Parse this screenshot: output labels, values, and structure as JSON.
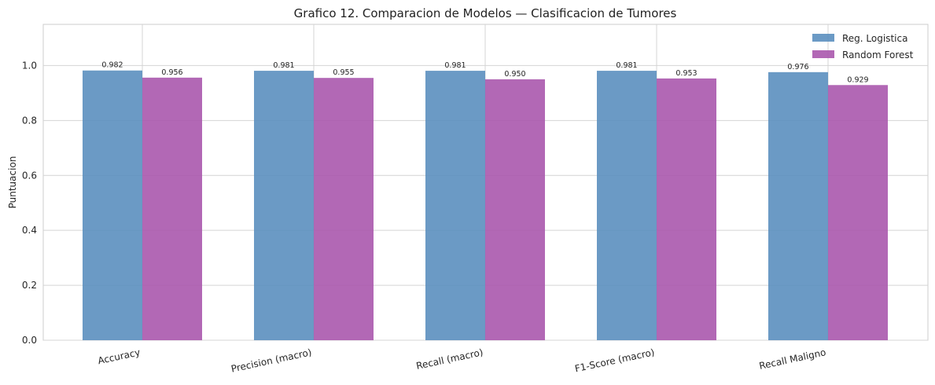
{
  "chart_data": {
    "type": "bar",
    "title": "Grafico 12. Comparacion de Modelos — Clasificacion de Tumores",
    "xlabel": "",
    "ylabel": "Puntuacion",
    "categories": [
      "Accuracy",
      "Precision (macro)",
      "Recall (macro)",
      "F1-Score (macro)",
      "Recall Maligno"
    ],
    "series": [
      {
        "name": "Reg. Logistica",
        "values": [
          0.982,
          0.981,
          0.981,
          0.981,
          0.976
        ],
        "labels": [
          "0.982",
          "0.981",
          "0.981",
          "0.981",
          "0.976"
        ],
        "color": "#5b8fbf"
      },
      {
        "name": "Random Forest",
        "values": [
          0.956,
          0.955,
          0.95,
          0.953,
          0.929
        ],
        "labels": [
          "0.956",
          "0.955",
          "0.950",
          "0.953",
          "0.929"
        ],
        "color": "#aa58ad"
      }
    ],
    "ylim": [
      0,
      1.15
    ],
    "yticks": [
      0.0,
      0.2,
      0.4,
      0.6,
      0.8,
      1.0
    ],
    "ytick_labels": [
      "0.0",
      "0.2",
      "0.4",
      "0.6",
      "0.8",
      "1.0"
    ],
    "grid": true,
    "legend_position": "top-right"
  }
}
